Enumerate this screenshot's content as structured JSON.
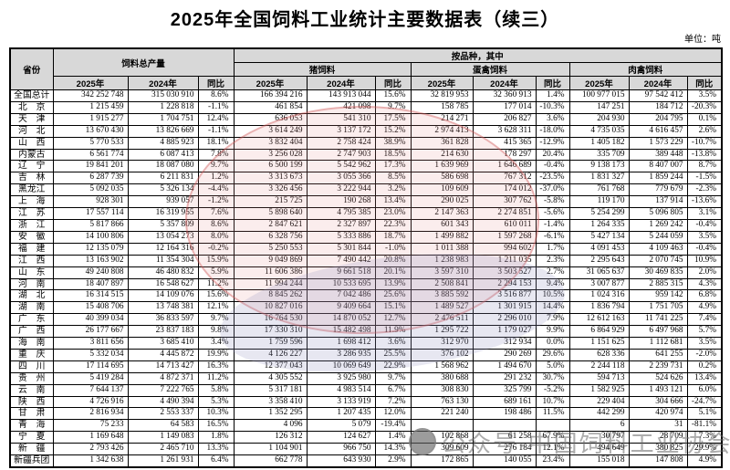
{
  "title": "2025年全国饲料工业统计主要数据表（续三）",
  "unit_label": "单位：吨",
  "colors": {
    "header_bg": "#d8d8d8",
    "border": "#000000",
    "stamp_red": "#cd5050",
    "stamp_lavender": "#9191be",
    "watermark_gray": "#696969"
  },
  "watermark": {
    "logo_icon": "round-badge-icon",
    "text": "公众号·中国饲料工业协会"
  },
  "table": {
    "col_province": "省份",
    "group_total": "饲料总产量",
    "group_by_variety": "按品种，其中",
    "sub_groups": [
      "猪饲料",
      "蛋禽饲料",
      "肉禽饲料"
    ],
    "year_cols": [
      "2025年",
      "2024年",
      "同比"
    ],
    "rows": [
      {
        "name": "全国总计",
        "t25": "342 252 748",
        "t24": "315 030 910",
        "tyb": "8.6%",
        "p25": "166 394 216",
        "p24": "143 913 044",
        "pyb": "15.6%",
        "e25": "32 819 953",
        "e24": "32 360 913",
        "eyb": "1.4%",
        "m25": "100 977 015",
        "m24": "97 542 412",
        "myb": "3.5%"
      },
      {
        "name": "北　京",
        "t25": "1 215 459",
        "t24": "1 228 818",
        "tyb": "-1.1%",
        "p25": "461 854",
        "p24": "421 098",
        "pyb": "9.7%",
        "e25": "158 785",
        "e24": "177 014",
        "eyb": "-10.3%",
        "m25": "147 251",
        "m24": "184 712",
        "myb": "-20.3%"
      },
      {
        "name": "天　津",
        "t25": "1 915 277",
        "t24": "1 704 751",
        "tyb": "12.4%",
        "p25": "636 053",
        "p24": "541 310",
        "pyb": "17.5%",
        "e25": "214 271",
        "e24": "206 827",
        "eyb": "3.6%",
        "m25": "204 930",
        "m24": "204 795",
        "myb": "0.1%"
      },
      {
        "name": "河　北",
        "t25": "13 670 430",
        "t24": "13 826 669",
        "tyb": "-1.1%",
        "p25": "3 614 249",
        "p24": "3 137 172",
        "pyb": "15.2%",
        "e25": "2 974 413",
        "e24": "3 628 311",
        "eyb": "-18.0%",
        "m25": "4 735 035",
        "m24": "4 616 457",
        "myb": "2.6%"
      },
      {
        "name": "山　西",
        "t25": "5 770 533",
        "t24": "4 885 923",
        "tyb": "18.1%",
        "p25": "3 832 404",
        "p24": "2 758 424",
        "pyb": "38.9%",
        "e25": "361 828",
        "e24": "415 365",
        "eyb": "-12.9%",
        "m25": "1 405 182",
        "m24": "1 573 229",
        "myb": "-10.7%"
      },
      {
        "name": "内蒙古",
        "t25": "6 561 774",
        "t24": "6 087 413",
        "tyb": "7.8%",
        "p25": "3 256 028",
        "p24": "2 747 903",
        "pyb": "18.5%",
        "e25": "214 630",
        "e24": "178 297",
        "eyb": "20.4%",
        "m25": "335 709",
        "m24": "389 448",
        "myb": "-13.8%"
      },
      {
        "name": "辽　宁",
        "t25": "19 841 201",
        "t24": "18 087 080",
        "tyb": "9.7%",
        "p25": "6 500 199",
        "p24": "5 542 962",
        "pyb": "17.3%",
        "e25": "1 639 969",
        "e24": "1 646 689",
        "eyb": "-0.4%",
        "m25": "9 138 173",
        "m24": "8 407 007",
        "myb": "8.7%"
      },
      {
        "name": "吉　林",
        "t25": "6 287 739",
        "t24": "6 211 831",
        "tyb": "1.2%",
        "p25": "3 313 673",
        "p24": "3 055 366",
        "pyb": "8.5%",
        "e25": "586 698",
        "e24": "767 312",
        "eyb": "-23.5%",
        "m25": "1 831 327",
        "m24": "1 859 244",
        "myb": "-1.5%"
      },
      {
        "name": "黑龙江",
        "t25": "5 092 035",
        "t24": "5 326 134",
        "tyb": "-4.4%",
        "p25": "3 326 456",
        "p24": "3 222 944",
        "pyb": "3.2%",
        "e25": "109 609",
        "e24": "174 012",
        "eyb": "-37.0%",
        "m25": "761 768",
        "m24": "779 679",
        "myb": "-2.3%"
      },
      {
        "name": "上　海",
        "t25": "928 301",
        "t24": "939 057",
        "tyb": "-1.2%",
        "p25": "215 725",
        "p24": "190 268",
        "pyb": "13.4%",
        "e25": "290 025",
        "e24": "307 762",
        "eyb": "-5.8%",
        "m25": "119 170",
        "m24": "137 914",
        "myb": "-13.6%"
      },
      {
        "name": "江　苏",
        "t25": "17 557 114",
        "t24": "16 319 955",
        "tyb": "7.6%",
        "p25": "5 898 640",
        "p24": "4 795 385",
        "pyb": "23.0%",
        "e25": "2 147 363",
        "e24": "2 274 851",
        "eyb": "-5.6%",
        "m25": "5 254 299",
        "m24": "5 096 805",
        "myb": "3.1%"
      },
      {
        "name": "浙　江",
        "t25": "5 817 866",
        "t24": "5 357 809",
        "tyb": "8.6%",
        "p25": "2 847 621",
        "p24": "2 327 897",
        "pyb": "22.3%",
        "e25": "601 343",
        "e24": "610 011",
        "eyb": "-1.4%",
        "m25": "1 264 335",
        "m24": "1 269 242",
        "myb": "-0.4%"
      },
      {
        "name": "安　徽",
        "t25": "14 100 806",
        "t24": "13 054 273",
        "tyb": "8.0%",
        "p25": "6 328 756",
        "p24": "5 333 886",
        "pyb": "18.7%",
        "e25": "1 499 882",
        "e24": "1 597 268",
        "eyb": "-6.1%",
        "m25": "5 427 134",
        "m24": "5 244 059",
        "myb": "3.5%"
      },
      {
        "name": "福　建",
        "t25": "12 135 079",
        "t24": "12 164 316",
        "tyb": "-0.2%",
        "p25": "5 250 553",
        "p24": "5 301 844",
        "pyb": "-1.0%",
        "e25": "1 011 388",
        "e24": "994 602",
        "eyb": "1.7%",
        "m25": "4 091 453",
        "m24": "4 109 463",
        "myb": "-0.4%"
      },
      {
        "name": "江　西",
        "t25": "13 163 902",
        "t24": "11 354 304",
        "tyb": "15.9%",
        "p25": "9 049 869",
        "p24": "7 490 442",
        "pyb": "20.8%",
        "e25": "1 238 983",
        "e24": "1 211 035",
        "eyb": "2.3%",
        "m25": "2 295 643",
        "m24": "2 070 745",
        "myb": "10.9%"
      },
      {
        "name": "山　东",
        "t25": "49 240 808",
        "t24": "46 480 832",
        "tyb": "5.9%",
        "p25": "11 606 386",
        "p24": "9 661 518",
        "pyb": "20.1%",
        "e25": "3 597 310",
        "e24": "3 503 527",
        "eyb": "2.7%",
        "m25": "31 065 637",
        "m24": "30 469 835",
        "myb": "2.0%"
      },
      {
        "name": "河　南",
        "t25": "18 407 897",
        "t24": "16 548 627",
        "tyb": "11.2%",
        "p25": "11 994 244",
        "p24": "10 533 695",
        "pyb": "13.9%",
        "e25": "2 508 841",
        "e24": "2 294 153",
        "eyb": "9.4%",
        "m25": "3 007 877",
        "m24": "2 885 315",
        "myb": "4.3%"
      },
      {
        "name": "湖　北",
        "t25": "16 314 515",
        "t24": "14 109 076",
        "tyb": "15.6%",
        "p25": "8 845 262",
        "p24": "7 042 486",
        "pyb": "25.6%",
        "e25": "3 885 592",
        "e24": "3 516 877",
        "eyb": "10.5%",
        "m25": "1 024 316",
        "m24": "959 142",
        "myb": "6.8%"
      },
      {
        "name": "湖　南",
        "t25": "15 408 706",
        "t24": "13 748 381",
        "tyb": "12.1%",
        "p25": "10 827 016",
        "p24": "9 409 664",
        "pyb": "15.1%",
        "e25": "1 489 527",
        "e24": "1 301 915",
        "eyb": "14.4%",
        "m25": "1 836 794",
        "m24": "1 751 705",
        "myb": "4.9%"
      },
      {
        "name": "广　东",
        "t25": "40 399 034",
        "t24": "36 833 597",
        "tyb": "9.7%",
        "p25": "16 764 530",
        "p24": "14 870 052",
        "pyb": "12.7%",
        "e25": "2 476 511",
        "e24": "2 296 010",
        "eyb": "7.9%",
        "m25": "12 612 163",
        "m24": "11 741 225",
        "myb": "7.4%"
      },
      {
        "name": "广　西",
        "t25": "26 177 667",
        "t24": "23 837 183",
        "tyb": "9.8%",
        "p25": "17 330 310",
        "p24": "15 482 498",
        "pyb": "11.9%",
        "e25": "1 295 722",
        "e24": "1 179 027",
        "eyb": "9.9%",
        "m25": "6 864 929",
        "m24": "6 497 968",
        "myb": "5.7%"
      },
      {
        "name": "海　南",
        "t25": "3 811 656",
        "t24": "3 685 410",
        "tyb": "3.4%",
        "p25": "1 759 596",
        "p24": "1 698 412",
        "pyb": "3.6%",
        "e25": "312 970",
        "e24": "312 934",
        "eyb": "0.0%",
        "m25": "1 151 625",
        "m24": "1 112 681",
        "myb": "3.5%"
      },
      {
        "name": "重　庆",
        "t25": "5 332 034",
        "t24": "4 445 872",
        "tyb": "19.9%",
        "p25": "4 126 227",
        "p24": "3 286 935",
        "pyb": "25.5%",
        "e25": "376 102",
        "e24": "290 269",
        "eyb": "29.6%",
        "m25": "628 336",
        "m24": "641 255",
        "myb": "-2.0%"
      },
      {
        "name": "四　川",
        "t25": "17 114 695",
        "t24": "14 713 427",
        "tyb": "16.3%",
        "p25": "12 377 043",
        "p24": "10 069 649",
        "pyb": "22.9%",
        "e25": "1 568 962",
        "e24": "1 494 670",
        "eyb": "5.0%",
        "m25": "2 244 118",
        "m24": "2 239 731",
        "myb": "0.2%"
      },
      {
        "name": "贵　州",
        "t25": "5 419 284",
        "t24": "4 872 371",
        "tyb": "11.2%",
        "p25": "4 305 552",
        "p24": "3 925 980",
        "pyb": "9.7%",
        "e25": "380 688",
        "e24": "291 232",
        "eyb": "30.7%",
        "m25": "594 713",
        "m24": "524 626",
        "myb": "13.4%"
      },
      {
        "name": "云　南",
        "t25": "7 644 137",
        "t24": "7 222 765",
        "tyb": "5.8%",
        "p25": "5 317 181",
        "p24": "4 983 514",
        "pyb": "6.7%",
        "e25": "308 830",
        "e24": "325 799",
        "eyb": "-5.2%",
        "m25": "1 582 925",
        "m24": "1 493 121",
        "myb": "6.0%"
      },
      {
        "name": "陕　西",
        "t25": "4 726 916",
        "t24": "4 490 394",
        "tyb": "5.3%",
        "p25": "3 358 410",
        "p24": "3 133 919",
        "pyb": "7.2%",
        "e25": "763 130",
        "e24": "689 161",
        "eyb": "10.7%",
        "m25": "229 404",
        "m24": "304 666",
        "myb": "-24.7%"
      },
      {
        "name": "甘　肃",
        "t25": "2 816 934",
        "t24": "2 553 337",
        "tyb": "10.3%",
        "p25": "1 352 295",
        "p24": "1 207 435",
        "pyb": "12.0%",
        "e25": "221 240",
        "e24": "198 486",
        "eyb": "11.5%",
        "m25": "442 299",
        "m24": "420 974",
        "myb": "5.1%"
      },
      {
        "name": "青　海",
        "t25": "75 233",
        "t24": "64 583",
        "tyb": "16.5%",
        "p25": "4 096",
        "p24": "5 079",
        "pyb": "-19.4%",
        "e25": "",
        "e24": "",
        "eyb": "",
        "m25": "6",
        "m24": "31",
        "myb": "-81.1%"
      },
      {
        "name": "宁　夏",
        "t25": "1 169 648",
        "t24": "1 149 083",
        "tyb": "1.8%",
        "p25": "126 312",
        "p24": "124 627",
        "pyb": "1.4%",
        "e25": "102 868",
        "e24": "61 258",
        "eyb": "67.9%",
        "m25": "30 797",
        "m24": "28 709",
        "myb": "7.3%"
      },
      {
        "name": "新　疆",
        "t25": "2 793 426",
        "t24": "2 465 710",
        "tyb": "13.3%",
        "p25": "1 104 901",
        "p24": "966 750",
        "pyb": "14.3%",
        "e25": "309 609",
        "e24": "276 184",
        "eyb": "12.1%",
        "m25": "494 649",
        "m24": "380 825",
        "myb": "29.9%"
      },
      {
        "name": "新疆兵团",
        "t25": "1 342 638",
        "t24": "1 261 931",
        "tyb": "6.4%",
        "p25": "662 778",
        "p24": "643 930",
        "pyb": "2.9%",
        "e25": "172 865",
        "e24": "140 055",
        "eyb": "23.4%",
        "m25": "155 018",
        "m24": "147 808",
        "myb": "4.9%"
      }
    ]
  }
}
